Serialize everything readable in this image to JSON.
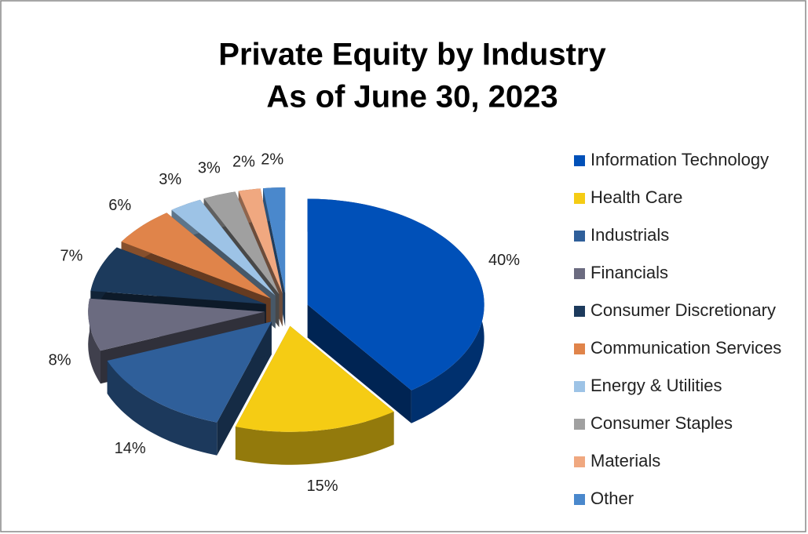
{
  "chart_data": {
    "type": "pie3d",
    "title": "Private Equity by Industry",
    "subtitle": "As of June 30, 2023",
    "categories": [
      "Information Technology",
      "Health Care",
      "Industrials",
      "Financials",
      "Consumer Discretionary",
      "Communication Services",
      "Energy & Utilities",
      "Consumer Staples",
      "Materials",
      "Other"
    ],
    "values": [
      40,
      15,
      14,
      8,
      7,
      6,
      3,
      3,
      2,
      2
    ],
    "value_labels": [
      "40%",
      "15%",
      "14%",
      "8%",
      "7%",
      "6%",
      "3%",
      "3%",
      "2%",
      "2%"
    ],
    "colors": [
      "#0050b8",
      "#f5cc14",
      "#2f5f9a",
      "#6b6b80",
      "#1c3a5c",
      "#e0844a",
      "#9dc3e6",
      "#a0a0a0",
      "#f0a880",
      "#4a88cc"
    ],
    "legend": "right"
  }
}
